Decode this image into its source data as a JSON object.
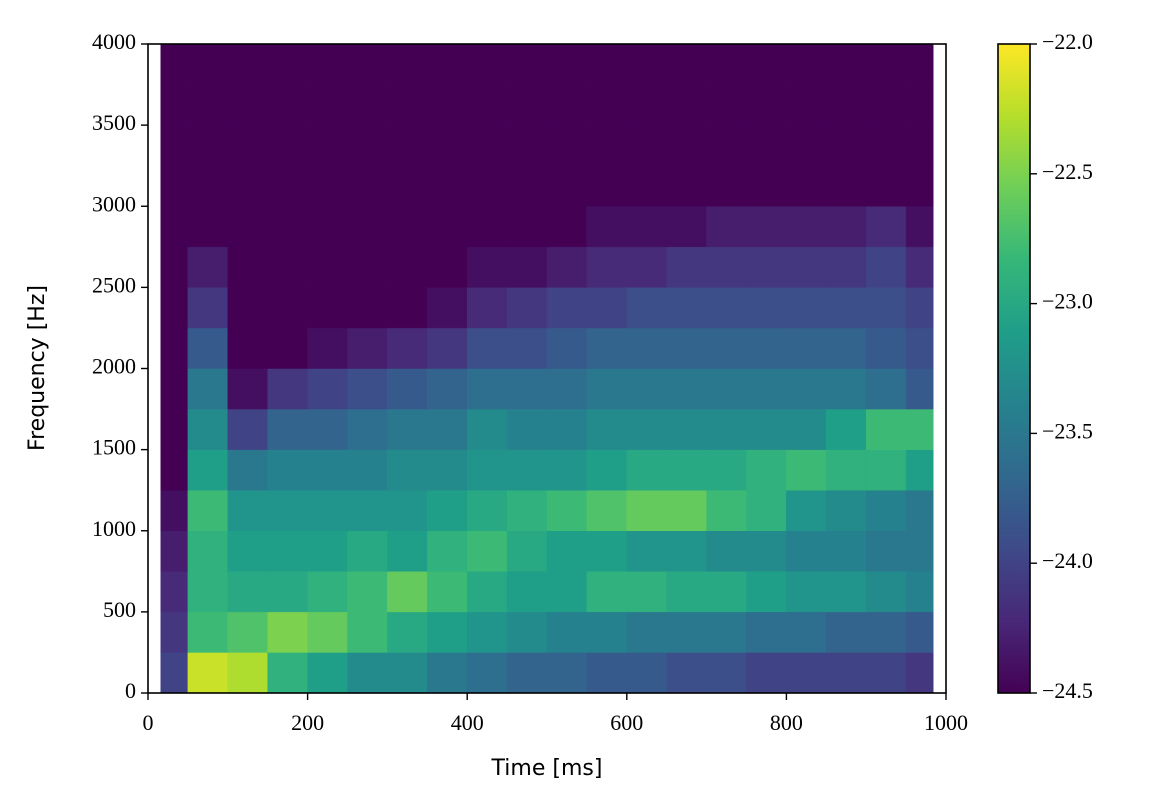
{
  "chart_data": {
    "type": "heatmap",
    "x_label": "Time [ms]",
    "y_label": "Frequency [Hz]",
    "xlim": [
      0,
      1000
    ],
    "ylim": [
      0,
      4000
    ],
    "xticks": [
      0,
      200,
      400,
      600,
      800,
      1000
    ],
    "yticks": [
      0,
      500,
      1000,
      1500,
      2000,
      2500,
      3000,
      3500,
      4000
    ],
    "colormap": "viridis",
    "zlim": [
      -24.5,
      -22
    ],
    "zticks": [
      {
        "value": -22.0,
        "label": "−22.0"
      },
      {
        "value": -22.5,
        "label": "−22.5"
      },
      {
        "value": -23.0,
        "label": "−23.0"
      },
      {
        "value": -23.5,
        "label": "−23.5"
      },
      {
        "value": -24.0,
        "label": "−24.0"
      },
      {
        "value": -24.5,
        "label": "−24.5"
      }
    ],
    "x_edges": [
      16,
      50,
      100,
      150,
      200,
      250,
      300,
      350,
      400,
      450,
      500,
      550,
      600,
      650,
      700,
      750,
      800,
      850,
      900,
      950,
      984
    ],
    "y_edges": [
      0,
      250,
      500,
      750,
      1000,
      1250,
      1500,
      1750,
      2000,
      2250,
      2500,
      2750,
      3000,
      3250,
      3500,
      3750,
      4000
    ],
    "z": [
      [
        -24.0,
        -22.2,
        -22.3,
        -22.9,
        -23.1,
        -23.3,
        -23.3,
        -23.5,
        -23.6,
        -23.7,
        -23.7,
        -23.8,
        -23.8,
        -23.9,
        -23.9,
        -24.0,
        -24.0,
        -24.0,
        -24.0,
        -24.1
      ],
      [
        -24.1,
        -22.8,
        -22.7,
        -22.5,
        -22.6,
        -22.8,
        -23.0,
        -23.1,
        -23.2,
        -23.3,
        -23.4,
        -23.4,
        -23.5,
        -23.5,
        -23.5,
        -23.6,
        -23.6,
        -23.7,
        -23.7,
        -23.8
      ],
      [
        -24.2,
        -22.9,
        -23.0,
        -23.0,
        -22.9,
        -22.8,
        -22.6,
        -22.8,
        -23.0,
        -23.1,
        -23.1,
        -22.9,
        -22.9,
        -23.0,
        -23.0,
        -23.1,
        -23.2,
        -23.2,
        -23.3,
        -23.4
      ],
      [
        -24.3,
        -22.9,
        -23.1,
        -23.1,
        -23.1,
        -23.0,
        -23.1,
        -22.9,
        -22.8,
        -23.0,
        -23.1,
        -23.1,
        -23.2,
        -23.2,
        -23.3,
        -23.3,
        -23.4,
        -23.4,
        -23.5,
        -23.5
      ],
      [
        -24.4,
        -22.8,
        -23.2,
        -23.2,
        -23.2,
        -23.2,
        -23.2,
        -23.1,
        -23.0,
        -22.9,
        -22.8,
        -22.7,
        -22.6,
        -22.6,
        -22.8,
        -22.9,
        -23.2,
        -23.3,
        -23.4,
        -23.5
      ],
      [
        -24.5,
        -23.1,
        -23.5,
        -23.4,
        -23.4,
        -23.4,
        -23.3,
        -23.3,
        -23.2,
        -23.2,
        -23.2,
        -23.1,
        -23.0,
        -23.0,
        -23.0,
        -22.9,
        -22.8,
        -22.9,
        -22.9,
        -23.1
      ],
      [
        -24.5,
        -23.3,
        -24.0,
        -23.7,
        -23.7,
        -23.6,
        -23.5,
        -23.5,
        -23.3,
        -23.4,
        -23.4,
        -23.3,
        -23.3,
        -23.3,
        -23.3,
        -23.3,
        -23.3,
        -23.1,
        -22.8,
        -22.8
      ],
      [
        -24.5,
        -23.5,
        -24.4,
        -24.1,
        -24.0,
        -23.9,
        -23.8,
        -23.7,
        -23.6,
        -23.6,
        -23.6,
        -23.5,
        -23.5,
        -23.5,
        -23.5,
        -23.5,
        -23.5,
        -23.5,
        -23.6,
        -23.8
      ],
      [
        -24.5,
        -23.8,
        -24.5,
        -24.5,
        -24.4,
        -24.3,
        -24.2,
        -24.1,
        -23.9,
        -23.9,
        -23.8,
        -23.7,
        -23.7,
        -23.7,
        -23.7,
        -23.7,
        -23.7,
        -23.7,
        -23.8,
        -23.9
      ],
      [
        -24.5,
        -24.1,
        -24.5,
        -24.5,
        -24.5,
        -24.5,
        -24.5,
        -24.4,
        -24.2,
        -24.1,
        -24.0,
        -24.0,
        -23.9,
        -23.9,
        -23.9,
        -23.9,
        -23.9,
        -23.9,
        -23.9,
        -24.0
      ],
      [
        -24.5,
        -24.3,
        -24.5,
        -24.5,
        -24.5,
        -24.5,
        -24.5,
        -24.5,
        -24.4,
        -24.4,
        -24.3,
        -24.2,
        -24.2,
        -24.1,
        -24.1,
        -24.1,
        -24.1,
        -24.1,
        -24.0,
        -24.2
      ],
      [
        -24.5,
        -24.5,
        -24.5,
        -24.5,
        -24.5,
        -24.5,
        -24.5,
        -24.5,
        -24.5,
        -24.5,
        -24.5,
        -24.4,
        -24.4,
        -24.4,
        -24.3,
        -24.3,
        -24.3,
        -24.3,
        -24.2,
        -24.4
      ],
      [
        -24.5,
        -24.5,
        -24.5,
        -24.5,
        -24.5,
        -24.5,
        -24.5,
        -24.5,
        -24.5,
        -24.5,
        -24.5,
        -24.5,
        -24.5,
        -24.5,
        -24.5,
        -24.5,
        -24.5,
        -24.5,
        -24.5,
        -24.5
      ],
      [
        -24.5,
        -24.5,
        -24.5,
        -24.5,
        -24.5,
        -24.5,
        -24.5,
        -24.5,
        -24.5,
        -24.5,
        -24.5,
        -24.5,
        -24.5,
        -24.5,
        -24.5,
        -24.5,
        -24.5,
        -24.5,
        -24.5,
        -24.5
      ],
      [
        -24.5,
        -24.5,
        -24.5,
        -24.5,
        -24.5,
        -24.5,
        -24.5,
        -24.5,
        -24.5,
        -24.5,
        -24.5,
        -24.5,
        -24.5,
        -24.5,
        -24.5,
        -24.5,
        -24.5,
        -24.5,
        -24.5,
        -24.5
      ],
      [
        -24.5,
        -24.5,
        -24.5,
        -24.5,
        -24.5,
        -24.5,
        -24.5,
        -24.5,
        -24.5,
        -24.5,
        -24.5,
        -24.5,
        -24.5,
        -24.5,
        -24.5,
        -24.5,
        -24.5,
        -24.5,
        -24.5,
        -24.5
      ]
    ]
  }
}
